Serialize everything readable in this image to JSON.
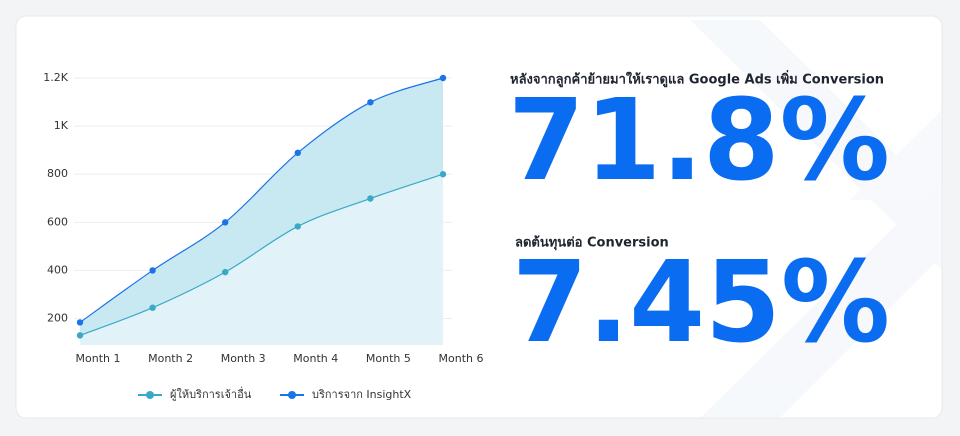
{
  "chart_data": {
    "type": "line",
    "categories": [
      "Month 1",
      "Month 2",
      "Month 3",
      "Month 4",
      "Month 5",
      "Month 6"
    ],
    "series": [
      {
        "name": "ผู้ให้บริการเจ้าอื่น",
        "color": "#3aa9c6",
        "values": [
          130,
          245,
          393,
          583,
          699,
          800
        ]
      },
      {
        "name": "บริการจาก InsightX",
        "color": "#1a73e8",
        "values": [
          184,
          400,
          600,
          889,
          1099,
          1200
        ]
      }
    ],
    "ylim": [
      90,
      1200
    ],
    "yticks": [
      200,
      400,
      600,
      800,
      {
        "value": 1000,
        "label": "1K"
      },
      {
        "value": 1200,
        "label": "1.2K"
      }
    ],
    "grid": true
  },
  "stats": [
    {
      "label": "หลังจากลูกค้าย้ายมาให้เราดูแล Google Ads เพิ่ม Conversion",
      "value": "71.8%"
    },
    {
      "label": "ลดต้นทุนต่อ Conversion",
      "value": "7.45%"
    }
  ]
}
